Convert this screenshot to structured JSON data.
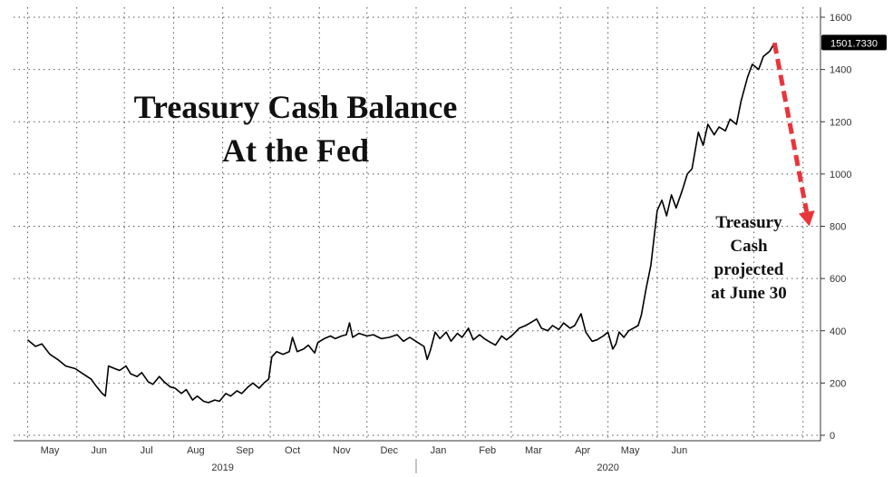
{
  "chart_data": {
    "type": "line",
    "title_lines": [
      "Treasury Cash Balance",
      "At the Fed"
    ],
    "annotation_lines": [
      "Treasury",
      "Cash",
      "projected",
      "at June 30"
    ],
    "last_value_label": "1501.7330",
    "y_ticks": [
      0,
      200,
      400,
      600,
      800,
      1000,
      1200,
      1400,
      1600
    ],
    "ylim": [
      0,
      1600
    ],
    "month_labels": [
      "May",
      "Jun",
      "Jul",
      "Aug",
      "Sep",
      "Oct",
      "Nov",
      "Dec",
      "Jan",
      "Feb",
      "Mar",
      "Apr",
      "May",
      "Jun"
    ],
    "year_labels": [
      "2019",
      "2020"
    ],
    "grid": true,
    "colors": {
      "line": "#000000",
      "projection": "#e8353b",
      "badge": "#000000",
      "grid": "#555555"
    },
    "series": [
      {
        "values": [
          [
            "2019-05-01",
            365
          ],
          [
            "2019-05-06",
            340
          ],
          [
            "2019-05-10",
            350
          ],
          [
            "2019-05-15",
            310
          ],
          [
            "2019-05-20",
            290
          ],
          [
            "2019-05-25",
            265
          ],
          [
            "2019-05-31",
            255
          ],
          [
            "2019-06-05",
            235
          ],
          [
            "2019-06-10",
            215
          ],
          [
            "2019-06-13",
            190
          ],
          [
            "2019-06-17",
            160
          ],
          [
            "2019-06-19",
            150
          ],
          [
            "2019-06-21",
            265
          ],
          [
            "2019-06-25",
            255
          ],
          [
            "2019-06-28",
            248
          ],
          [
            "2019-07-02",
            265
          ],
          [
            "2019-07-05",
            235
          ],
          [
            "2019-07-09",
            225
          ],
          [
            "2019-07-12",
            240
          ],
          [
            "2019-07-16",
            205
          ],
          [
            "2019-07-19",
            195
          ],
          [
            "2019-07-23",
            225
          ],
          [
            "2019-07-26",
            205
          ],
          [
            "2019-07-30",
            185
          ],
          [
            "2019-08-02",
            180
          ],
          [
            "2019-08-06",
            160
          ],
          [
            "2019-08-09",
            175
          ],
          [
            "2019-08-13",
            135
          ],
          [
            "2019-08-16",
            150
          ],
          [
            "2019-08-20",
            130
          ],
          [
            "2019-08-23",
            125
          ],
          [
            "2019-08-27",
            135
          ],
          [
            "2019-08-30",
            130
          ],
          [
            "2019-09-03",
            160
          ],
          [
            "2019-09-06",
            150
          ],
          [
            "2019-09-10",
            170
          ],
          [
            "2019-09-13",
            160
          ],
          [
            "2019-09-17",
            185
          ],
          [
            "2019-09-20",
            200
          ],
          [
            "2019-09-24",
            180
          ],
          [
            "2019-09-27",
            200
          ],
          [
            "2019-09-30",
            215
          ],
          [
            "2019-10-02",
            300
          ],
          [
            "2019-10-05",
            320
          ],
          [
            "2019-10-09",
            310
          ],
          [
            "2019-10-13",
            320
          ],
          [
            "2019-10-15",
            375
          ],
          [
            "2019-10-18",
            320
          ],
          [
            "2019-10-22",
            330
          ],
          [
            "2019-10-25",
            345
          ],
          [
            "2019-10-29",
            315
          ],
          [
            "2019-10-31",
            355
          ],
          [
            "2019-11-04",
            370
          ],
          [
            "2019-11-08",
            380
          ],
          [
            "2019-11-11",
            370
          ],
          [
            "2019-11-15",
            380
          ],
          [
            "2019-11-18",
            385
          ],
          [
            "2019-11-20",
            430
          ],
          [
            "2019-11-22",
            375
          ],
          [
            "2019-11-26",
            390
          ],
          [
            "2019-12-01",
            380
          ],
          [
            "2019-12-05",
            385
          ],
          [
            "2019-12-10",
            370
          ],
          [
            "2019-12-15",
            375
          ],
          [
            "2019-12-20",
            385
          ],
          [
            "2019-12-24",
            360
          ],
          [
            "2019-12-28",
            375
          ],
          [
            "2020-01-02",
            355
          ],
          [
            "2020-01-06",
            340
          ],
          [
            "2020-01-08",
            290
          ],
          [
            "2020-01-10",
            325
          ],
          [
            "2020-01-13",
            395
          ],
          [
            "2020-01-16",
            370
          ],
          [
            "2020-01-20",
            395
          ],
          [
            "2020-01-23",
            360
          ],
          [
            "2020-01-27",
            390
          ],
          [
            "2020-01-30",
            375
          ],
          [
            "2020-02-03",
            410
          ],
          [
            "2020-02-06",
            365
          ],
          [
            "2020-02-10",
            385
          ],
          [
            "2020-02-13",
            370
          ],
          [
            "2020-02-17",
            355
          ],
          [
            "2020-02-20",
            345
          ],
          [
            "2020-02-24",
            380
          ],
          [
            "2020-02-27",
            365
          ],
          [
            "2020-03-02",
            385
          ],
          [
            "2020-03-06",
            410
          ],
          [
            "2020-03-10",
            420
          ],
          [
            "2020-03-13",
            430
          ],
          [
            "2020-03-17",
            445
          ],
          [
            "2020-03-20",
            410
          ],
          [
            "2020-03-24",
            400
          ],
          [
            "2020-03-27",
            420
          ],
          [
            "2020-03-31",
            405
          ],
          [
            "2020-04-03",
            430
          ],
          [
            "2020-04-07",
            410
          ],
          [
            "2020-04-10",
            420
          ],
          [
            "2020-04-14",
            465
          ],
          [
            "2020-04-17",
            395
          ],
          [
            "2020-04-21",
            360
          ],
          [
            "2020-04-24",
            365
          ],
          [
            "2020-04-28",
            380
          ],
          [
            "2020-05-01",
            395
          ],
          [
            "2020-05-04",
            330
          ],
          [
            "2020-05-06",
            350
          ],
          [
            "2020-05-08",
            395
          ],
          [
            "2020-05-11",
            375
          ],
          [
            "2020-05-14",
            400
          ],
          [
            "2020-05-17",
            410
          ],
          [
            "2020-05-20",
            420
          ],
          [
            "2020-05-22",
            460
          ],
          [
            "2020-05-25",
            560
          ],
          [
            "2020-05-28",
            650
          ],
          [
            "2020-06-01",
            860
          ],
          [
            "2020-06-04",
            900
          ],
          [
            "2020-06-07",
            840
          ],
          [
            "2020-06-10",
            920
          ],
          [
            "2020-06-13",
            870
          ],
          [
            "2020-06-17",
            940
          ],
          [
            "2020-06-20",
            1000
          ],
          [
            "2020-06-23",
            1020
          ],
          [
            "2020-06-27",
            1160
          ],
          [
            "2020-06-30",
            1110
          ],
          [
            "2020-07-03",
            1190
          ],
          [
            "2020-07-07",
            1150
          ],
          [
            "2020-07-10",
            1180
          ],
          [
            "2020-07-14",
            1165
          ],
          [
            "2020-07-17",
            1210
          ],
          [
            "2020-07-21",
            1190
          ],
          [
            "2020-07-24",
            1280
          ],
          [
            "2020-07-28",
            1370
          ],
          [
            "2020-07-31",
            1420
          ],
          [
            "2020-08-04",
            1400
          ],
          [
            "2020-08-07",
            1450
          ],
          [
            "2020-08-11",
            1470
          ],
          [
            "2020-08-14",
            1501.733
          ]
        ]
      }
    ],
    "projection": {
      "from": [
        "2020-08-14",
        1501.733
      ],
      "to": [
        "2020-09-05",
        800
      ]
    }
  }
}
